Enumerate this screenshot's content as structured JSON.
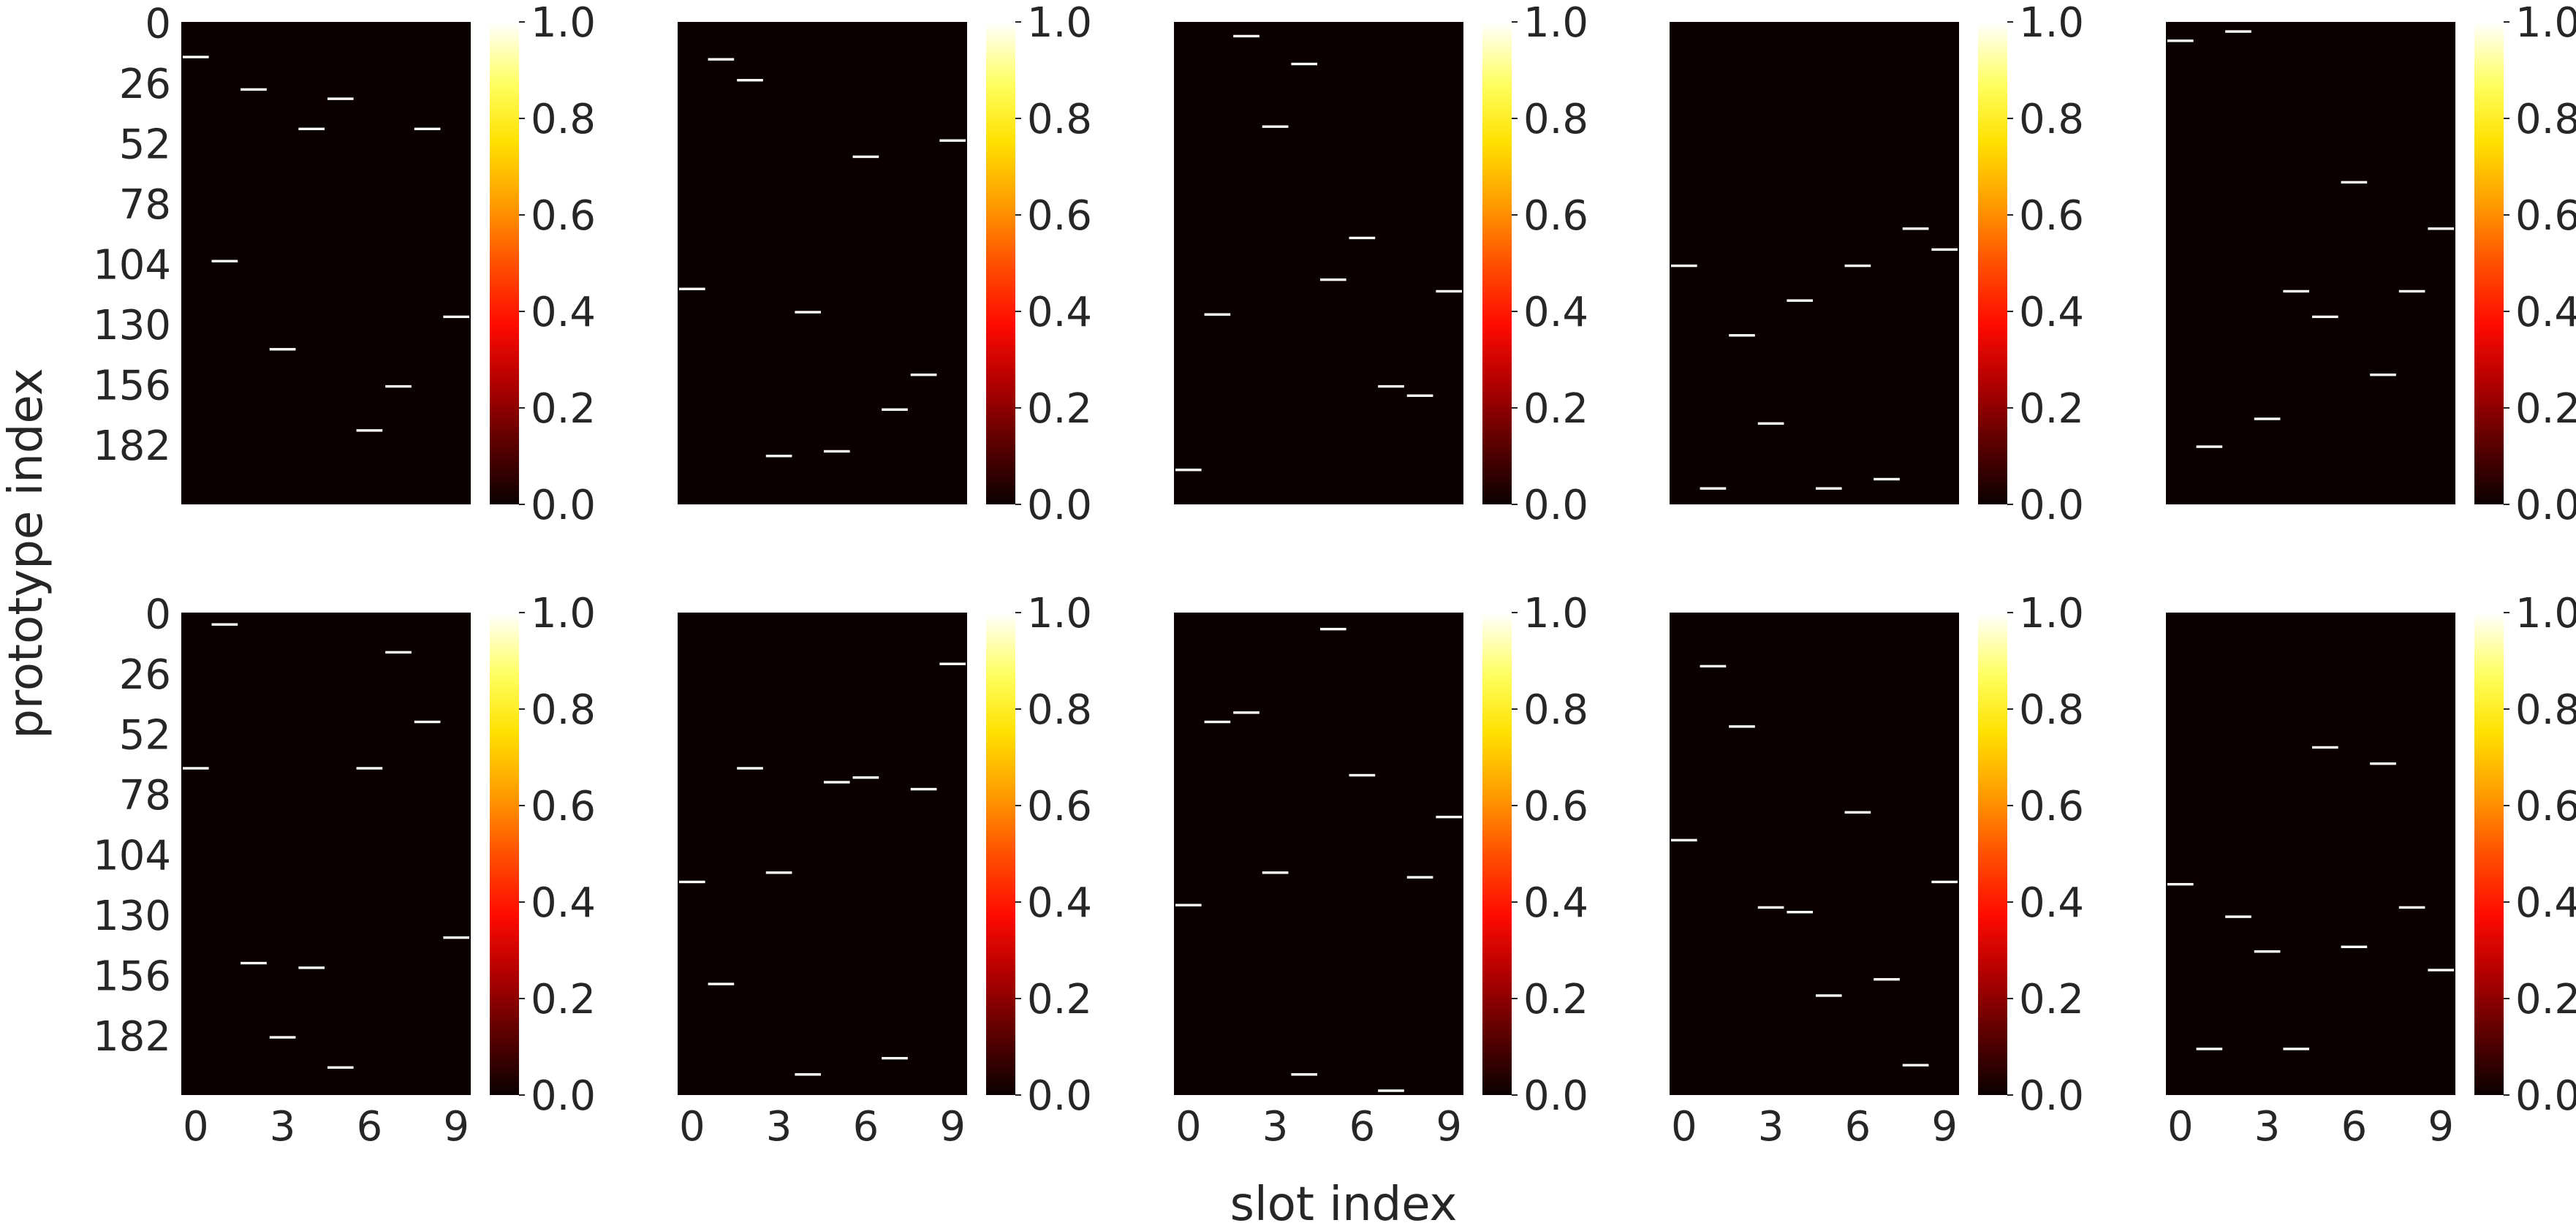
{
  "chart_data": {
    "type": "heatmap",
    "xlabel": "slot index",
    "ylabel": "prototype index",
    "layout": "2 rows x 5 columns of heatmaps, each with its own colorbar",
    "colormap": "hot",
    "background_value": 0.0,
    "x_range": [
      0,
      9
    ],
    "y_range": [
      0,
      207
    ],
    "x_ticks": [
      0,
      3,
      6,
      9
    ],
    "y_ticks": [
      0,
      26,
      52,
      78,
      104,
      130,
      156,
      182
    ],
    "colorbar_ticks": [
      "0.0",
      "0.2",
      "0.4",
      "0.6",
      "0.8",
      "1.0"
    ],
    "colorbar_range": [
      0.0,
      1.0
    ],
    "x_ticks_shown_on": "bottom row",
    "y_ticks_shown_on": "left column",
    "panels": [
      {
        "row": 0,
        "col": 0,
        "cells": [
          {
            "slot": 0,
            "proto": 15,
            "value": 1
          },
          {
            "slot": 1,
            "proto": 103,
            "value": 1
          },
          {
            "slot": 2,
            "proto": 29,
            "value": 1
          },
          {
            "slot": 3,
            "proto": 141,
            "value": 1
          },
          {
            "slot": 4,
            "proto": 46,
            "value": 1
          },
          {
            "slot": 5,
            "proto": 33,
            "value": 1
          },
          {
            "slot": 6,
            "proto": 176,
            "value": 1
          },
          {
            "slot": 7,
            "proto": 157,
            "value": 1
          },
          {
            "slot": 8,
            "proto": 46,
            "value": 1
          },
          {
            "slot": 9,
            "proto": 127,
            "value": 1
          }
        ]
      },
      {
        "row": 0,
        "col": 1,
        "cells": [
          {
            "slot": 0,
            "proto": 115,
            "value": 1
          },
          {
            "slot": 1,
            "proto": 16,
            "value": 1
          },
          {
            "slot": 2,
            "proto": 25,
            "value": 1
          },
          {
            "slot": 3,
            "proto": 187,
            "value": 1
          },
          {
            "slot": 4,
            "proto": 125,
            "value": 1
          },
          {
            "slot": 5,
            "proto": 185,
            "value": 1
          },
          {
            "slot": 6,
            "proto": 58,
            "value": 1
          },
          {
            "slot": 7,
            "proto": 167,
            "value": 1
          },
          {
            "slot": 8,
            "proto": 152,
            "value": 1
          },
          {
            "slot": 9,
            "proto": 51,
            "value": 1
          }
        ]
      },
      {
        "row": 0,
        "col": 2,
        "cells": [
          {
            "slot": 0,
            "proto": 193,
            "value": 1
          },
          {
            "slot": 1,
            "proto": 126,
            "value": 1
          },
          {
            "slot": 2,
            "proto": 6,
            "value": 1
          },
          {
            "slot": 3,
            "proto": 45,
            "value": 1
          },
          {
            "slot": 4,
            "proto": 18,
            "value": 1
          },
          {
            "slot": 5,
            "proto": 111,
            "value": 1
          },
          {
            "slot": 6,
            "proto": 93,
            "value": 1
          },
          {
            "slot": 7,
            "proto": 157,
            "value": 1
          },
          {
            "slot": 8,
            "proto": 161,
            "value": 1
          },
          {
            "slot": 9,
            "proto": 116,
            "value": 1
          }
        ]
      },
      {
        "row": 0,
        "col": 3,
        "cells": [
          {
            "slot": 0,
            "proto": 105,
            "value": 1
          },
          {
            "slot": 1,
            "proto": 201,
            "value": 1
          },
          {
            "slot": 2,
            "proto": 135,
            "value": 1
          },
          {
            "slot": 3,
            "proto": 173,
            "value": 1
          },
          {
            "slot": 4,
            "proto": 120,
            "value": 1
          },
          {
            "slot": 5,
            "proto": 201,
            "value": 1
          },
          {
            "slot": 6,
            "proto": 105,
            "value": 1
          },
          {
            "slot": 7,
            "proto": 197,
            "value": 1
          },
          {
            "slot": 8,
            "proto": 89,
            "value": 1
          },
          {
            "slot": 9,
            "proto": 98,
            "value": 1
          }
        ]
      },
      {
        "row": 0,
        "col": 4,
        "cells": [
          {
            "slot": 0,
            "proto": 8,
            "value": 1
          },
          {
            "slot": 1,
            "proto": 183,
            "value": 1
          },
          {
            "slot": 2,
            "proto": 4,
            "value": 1
          },
          {
            "slot": 3,
            "proto": 171,
            "value": 1
          },
          {
            "slot": 4,
            "proto": 116,
            "value": 1
          },
          {
            "slot": 5,
            "proto": 127,
            "value": 1
          },
          {
            "slot": 6,
            "proto": 69,
            "value": 1
          },
          {
            "slot": 7,
            "proto": 152,
            "value": 1
          },
          {
            "slot": 8,
            "proto": 116,
            "value": 1
          },
          {
            "slot": 9,
            "proto": 89,
            "value": 1
          }
        ]
      },
      {
        "row": 1,
        "col": 0,
        "cells": [
          {
            "slot": 0,
            "proto": 67,
            "value": 1
          },
          {
            "slot": 1,
            "proto": 5,
            "value": 1
          },
          {
            "slot": 2,
            "proto": 151,
            "value": 1
          },
          {
            "slot": 3,
            "proto": 183,
            "value": 1
          },
          {
            "slot": 4,
            "proto": 153,
            "value": 1
          },
          {
            "slot": 5,
            "proto": 196,
            "value": 1
          },
          {
            "slot": 6,
            "proto": 67,
            "value": 1
          },
          {
            "slot": 7,
            "proto": 17,
            "value": 1
          },
          {
            "slot": 8,
            "proto": 47,
            "value": 1
          },
          {
            "slot": 9,
            "proto": 140,
            "value": 1
          }
        ]
      },
      {
        "row": 1,
        "col": 1,
        "cells": [
          {
            "slot": 0,
            "proto": 116,
            "value": 1
          },
          {
            "slot": 1,
            "proto": 160,
            "value": 1
          },
          {
            "slot": 2,
            "proto": 67,
            "value": 1
          },
          {
            "slot": 3,
            "proto": 112,
            "value": 1
          },
          {
            "slot": 4,
            "proto": 199,
            "value": 1
          },
          {
            "slot": 5,
            "proto": 73,
            "value": 1
          },
          {
            "slot": 6,
            "proto": 71,
            "value": 1
          },
          {
            "slot": 7,
            "proto": 192,
            "value": 1
          },
          {
            "slot": 8,
            "proto": 76,
            "value": 1
          },
          {
            "slot": 9,
            "proto": 22,
            "value": 1
          }
        ]
      },
      {
        "row": 1,
        "col": 2,
        "cells": [
          {
            "slot": 0,
            "proto": 126,
            "value": 1
          },
          {
            "slot": 1,
            "proto": 47,
            "value": 1
          },
          {
            "slot": 2,
            "proto": 43,
            "value": 1
          },
          {
            "slot": 3,
            "proto": 112,
            "value": 1
          },
          {
            "slot": 4,
            "proto": 199,
            "value": 1
          },
          {
            "slot": 5,
            "proto": 7,
            "value": 1
          },
          {
            "slot": 6,
            "proto": 70,
            "value": 1
          },
          {
            "slot": 7,
            "proto": 206,
            "value": 1
          },
          {
            "slot": 8,
            "proto": 114,
            "value": 1
          },
          {
            "slot": 9,
            "proto": 88,
            "value": 1
          }
        ]
      },
      {
        "row": 1,
        "col": 3,
        "cells": [
          {
            "slot": 0,
            "proto": 98,
            "value": 1
          },
          {
            "slot": 1,
            "proto": 23,
            "value": 1
          },
          {
            "slot": 2,
            "proto": 49,
            "value": 1
          },
          {
            "slot": 3,
            "proto": 127,
            "value": 1
          },
          {
            "slot": 4,
            "proto": 129,
            "value": 1
          },
          {
            "slot": 5,
            "proto": 165,
            "value": 1
          },
          {
            "slot": 6,
            "proto": 86,
            "value": 1
          },
          {
            "slot": 7,
            "proto": 158,
            "value": 1
          },
          {
            "slot": 8,
            "proto": 195,
            "value": 1
          },
          {
            "slot": 9,
            "proto": 116,
            "value": 1
          }
        ]
      },
      {
        "row": 1,
        "col": 4,
        "cells": [
          {
            "slot": 0,
            "proto": 117,
            "value": 1
          },
          {
            "slot": 1,
            "proto": 188,
            "value": 1
          },
          {
            "slot": 2,
            "proto": 131,
            "value": 1
          },
          {
            "slot": 3,
            "proto": 146,
            "value": 1
          },
          {
            "slot": 4,
            "proto": 188,
            "value": 1
          },
          {
            "slot": 5,
            "proto": 58,
            "value": 1
          },
          {
            "slot": 6,
            "proto": 144,
            "value": 1
          },
          {
            "slot": 7,
            "proto": 65,
            "value": 1
          },
          {
            "slot": 8,
            "proto": 127,
            "value": 1
          },
          {
            "slot": 9,
            "proto": 154,
            "value": 1
          }
        ]
      }
    ]
  }
}
